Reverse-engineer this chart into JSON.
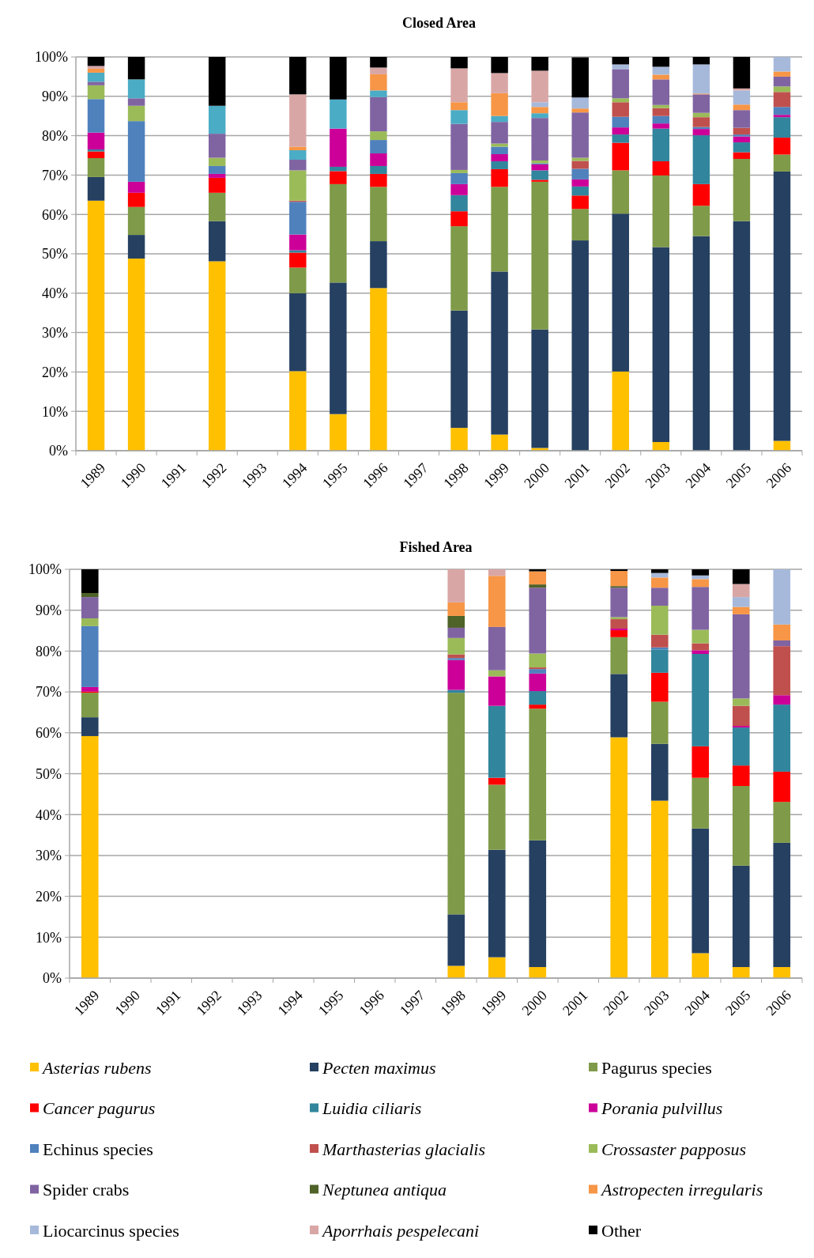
{
  "chart_data": [
    {
      "type": "bar",
      "title": "Closed Area",
      "stacked": true,
      "grid": "y",
      "ylim": [
        0,
        100
      ],
      "yticks": [
        {
          "value": 0,
          "label": "0%"
        },
        {
          "value": 10,
          "label": "10%"
        },
        {
          "value": 20,
          "label": "20%"
        },
        {
          "value": 30,
          "label": "30%"
        },
        {
          "value": 40,
          "label": "40%"
        },
        {
          "value": 50,
          "label": "50%"
        },
        {
          "value": 60,
          "label": "60%"
        },
        {
          "value": 70,
          "label": "70%"
        },
        {
          "value": 80,
          "label": "80%"
        },
        {
          "value": 90,
          "label": "90%"
        },
        {
          "value": 100,
          "label": "100%"
        }
      ],
      "categories": [
        "1989",
        "1990",
        "1991",
        "1992",
        "1993",
        "1994",
        "1995",
        "1996",
        "1997",
        "1998",
        "1999",
        "2000",
        "2001",
        "2002",
        "2003",
        "2004",
        "2005",
        "2006"
      ],
      "series": [
        {
          "color": "#ffc000",
          "values": [
            63.5,
            48.8,
            null,
            48.1,
            null,
            20.2,
            9.3,
            41.3,
            null,
            5.8,
            4.1,
            0.7,
            null,
            20.1,
            2.2,
            0,
            0,
            2.5
          ]
        },
        {
          "color": "#254061",
          "values": [
            6,
            6,
            null,
            10.2,
            null,
            19.8,
            33.4,
            11.9,
            null,
            29.8,
            41.4,
            30.1,
            53.4,
            40.1,
            49.5,
            54.5,
            58.3,
            68.4
          ]
        },
        {
          "color": "#7f9a48",
          "values": [
            4.8,
            7.1,
            null,
            7.2,
            null,
            6.5,
            25,
            13.8,
            null,
            21.4,
            21.5,
            37.5,
            8,
            11,
            18.2,
            7.7,
            15.8,
            4.3
          ]
        },
        {
          "color": "#ff0000",
          "values": [
            1.7,
            3.6,
            null,
            3.8,
            null,
            3.8,
            3.3,
            3.3,
            null,
            3.8,
            4.5,
            0.5,
            3.4,
            7,
            3.6,
            5.5,
            1.7,
            4.3
          ]
        },
        {
          "color": "#31859c",
          "values": [
            0.5,
            0,
            null,
            0,
            null,
            0.6,
            1.1,
            2,
            null,
            4.1,
            2,
            2.4,
            2.3,
            2.1,
            8.3,
            12.4,
            2.5,
            5.2
          ]
        },
        {
          "color": "#cc0099",
          "values": [
            4.3,
            2.8,
            null,
            1,
            null,
            4,
            9.7,
            3.2,
            null,
            2.8,
            1.8,
            1.5,
            1.8,
            1.8,
            1.3,
            1.6,
            1.5,
            0.6
          ]
        },
        {
          "color": "#4f81bd",
          "values": [
            8.5,
            15.4,
            null,
            2,
            null,
            8.3,
            0,
            3.4,
            null,
            2.8,
            1.9,
            0.3,
            2.7,
            2.7,
            1.9,
            0.5,
            0.5,
            2
          ]
        },
        {
          "color": "#c0504d",
          "values": [
            0,
            0,
            null,
            0,
            null,
            0.3,
            0,
            0,
            null,
            0,
            0,
            0,
            2,
            3.7,
            2,
            2.5,
            1.7,
            3.8
          ]
        },
        {
          "color": "#9bbb59",
          "values": [
            3.5,
            3.9,
            null,
            2.1,
            null,
            7.7,
            0,
            2.2,
            null,
            0.8,
            0.8,
            0.7,
            0.8,
            1,
            0.8,
            1.1,
            0,
            1.4
          ]
        },
        {
          "color": "#8064a2",
          "values": [
            0.9,
            1.9,
            null,
            6.1,
            null,
            2.7,
            0,
            8.7,
            null,
            11.7,
            5.5,
            10.8,
            11.5,
            7.4,
            6.5,
            4.7,
            4.5,
            2.5
          ]
        },
        {
          "color": "#4bacc6",
          "values": [
            2.3,
            4.8,
            null,
            7.1,
            null,
            2.4,
            7.4,
            1.7,
            null,
            3.5,
            1.5,
            1.2,
            0,
            0,
            0,
            0,
            0,
            0
          ]
        },
        {
          "color": "#f79646",
          "values": [
            1,
            0,
            null,
            0,
            null,
            0.9,
            0,
            4.1,
            null,
            2,
            5.8,
            1.6,
            1,
            0,
            1.2,
            0.2,
            1.4,
            1.3
          ]
        },
        {
          "color": "#a6b9db",
          "values": [
            0,
            0,
            null,
            0,
            null,
            0,
            0,
            0,
            null,
            0,
            0,
            1.2,
            2.8,
            1.2,
            2,
            7.4,
            3.6,
            3.7
          ]
        },
        {
          "color": "#d9a6a6",
          "values": [
            0.7,
            0,
            null,
            0,
            null,
            13.3,
            0,
            1.7,
            null,
            8.6,
            5.1,
            8,
            0,
            0,
            0,
            0,
            0.5,
            0
          ]
        },
        {
          "color": "#000000",
          "values": [
            2.3,
            5.7,
            null,
            12.4,
            null,
            9.5,
            10.8,
            2.7,
            null,
            2.9,
            4.1,
            3.5,
            10.2,
            1.9,
            2.5,
            1.9,
            8,
            0
          ]
        }
      ]
    },
    {
      "type": "bar",
      "title": "Fished Area",
      "stacked": true,
      "grid": "y",
      "legend": "bottom",
      "ylim": [
        0,
        100
      ],
      "yticks": [
        {
          "value": 0,
          "label": "0%"
        },
        {
          "value": 10,
          "label": "10%"
        },
        {
          "value": 20,
          "label": "20%"
        },
        {
          "value": 30,
          "label": "30%"
        },
        {
          "value": 40,
          "label": "40%"
        },
        {
          "value": 50,
          "label": "50%"
        },
        {
          "value": 60,
          "label": "60%"
        },
        {
          "value": 70,
          "label": "70%"
        },
        {
          "value": 80,
          "label": "80%"
        },
        {
          "value": 90,
          "label": "90%"
        },
        {
          "value": 100,
          "label": "100%"
        }
      ],
      "categories": [
        "1989",
        "1990",
        "1991",
        "1992",
        "1993",
        "1994",
        "1995",
        "1996",
        "1997",
        "1998",
        "1999",
        "2000",
        "2001",
        "2002",
        "2003",
        "2004",
        "2005",
        "2006"
      ],
      "series": [
        {
          "name": "Asterias rubens",
          "color": "#ffc000",
          "values": [
            59.2,
            null,
            null,
            null,
            null,
            null,
            null,
            null,
            null,
            3,
            5.1,
            2.7,
            null,
            58.9,
            43.4,
            6.1,
            2.7,
            2.7
          ]
        },
        {
          "name": "Pecten maximus",
          "color": "#254061",
          "values": [
            4.6,
            null,
            null,
            null,
            null,
            null,
            null,
            null,
            null,
            12.6,
            26.3,
            31,
            null,
            15.5,
            13.9,
            30.5,
            24.8,
            30.4
          ]
        },
        {
          "name": "Pagurus species",
          "color": "#7f9a48",
          "values": [
            6,
            null,
            null,
            null,
            null,
            null,
            null,
            null,
            null,
            54.2,
            15.9,
            32.2,
            null,
            9,
            10.3,
            12.4,
            19.5,
            10
          ]
        },
        {
          "name": "Cancer pagurus",
          "color": "#ff0000",
          "values": [
            0.3,
            null,
            null,
            null,
            null,
            null,
            null,
            null,
            null,
            0,
            1.7,
            1,
            null,
            1.7,
            7.1,
            7.7,
            5,
            7.4
          ]
        },
        {
          "name": "Luidia ciliaris",
          "color": "#31859c",
          "values": [
            0,
            null,
            null,
            null,
            null,
            null,
            null,
            null,
            null,
            0.7,
            17.6,
            3.3,
            null,
            0,
            5.7,
            22.6,
            9.3,
            16.4
          ]
        },
        {
          "name": "Porania pulvillus",
          "color": "#cc0099",
          "values": [
            1.1,
            null,
            null,
            null,
            null,
            null,
            null,
            null,
            null,
            7.3,
            7.2,
            4.3,
            null,
            0.4,
            0,
            0.9,
            0.4,
            2.3
          ]
        },
        {
          "name": "Echinus species",
          "color": "#4f81bd",
          "values": [
            14.9,
            null,
            null,
            null,
            null,
            null,
            null,
            null,
            null,
            0.5,
            0,
            1.1,
            null,
            0,
            0.5,
            0,
            0,
            0
          ]
        },
        {
          "name": "Marthasterias glacialis",
          "color": "#c0504d",
          "values": [
            0,
            null,
            null,
            null,
            null,
            null,
            null,
            null,
            null,
            0.9,
            0,
            0.4,
            null,
            2.3,
            3.1,
            1.7,
            4.9,
            12
          ]
        },
        {
          "name": "Crossaster papposus",
          "color": "#9bbb59",
          "values": [
            1.9,
            null,
            null,
            null,
            null,
            null,
            null,
            null,
            null,
            4,
            1.5,
            3.4,
            null,
            0.5,
            7.1,
            3.3,
            1.8,
            0
          ]
        },
        {
          "name": "Spider crabs",
          "color": "#8064a2",
          "values": [
            5.2,
            null,
            null,
            null,
            null,
            null,
            null,
            null,
            null,
            2.5,
            10.6,
            16.1,
            null,
            7.2,
            4.4,
            10.5,
            20.6,
            1.4
          ]
        },
        {
          "name": "Neptunea antiqua",
          "color": "#4f6228",
          "values": [
            1,
            null,
            null,
            null,
            null,
            null,
            null,
            null,
            null,
            2.9,
            0,
            0.8,
            null,
            0.4,
            0,
            0,
            0,
            0
          ]
        },
        {
          "name": "Astropecten irregularis",
          "color": "#f79646",
          "values": [
            0,
            null,
            null,
            null,
            null,
            null,
            null,
            null,
            null,
            3.3,
            12.5,
            3.2,
            null,
            3.7,
            2.5,
            1.9,
            1.8,
            3.9
          ]
        },
        {
          "name": "Liocarcinus species",
          "color": "#a6b9db",
          "values": [
            0,
            null,
            null,
            null,
            null,
            null,
            null,
            null,
            null,
            0,
            0,
            0,
            null,
            0,
            1.1,
            0.9,
            2.4,
            13.5
          ]
        },
        {
          "name": "Aporrhais pespelecani",
          "color": "#d9a6a6",
          "values": [
            0,
            null,
            null,
            null,
            null,
            null,
            null,
            null,
            null,
            8.1,
            1.6,
            0,
            null,
            0,
            0,
            0,
            3.2,
            0
          ]
        },
        {
          "name": "Other",
          "color": "#000000",
          "values": [
            5.8,
            null,
            null,
            null,
            null,
            null,
            null,
            null,
            null,
            0,
            0,
            0.5,
            null,
            0.4,
            0.9,
            1.5,
            3.6,
            0
          ]
        }
      ]
    }
  ]
}
